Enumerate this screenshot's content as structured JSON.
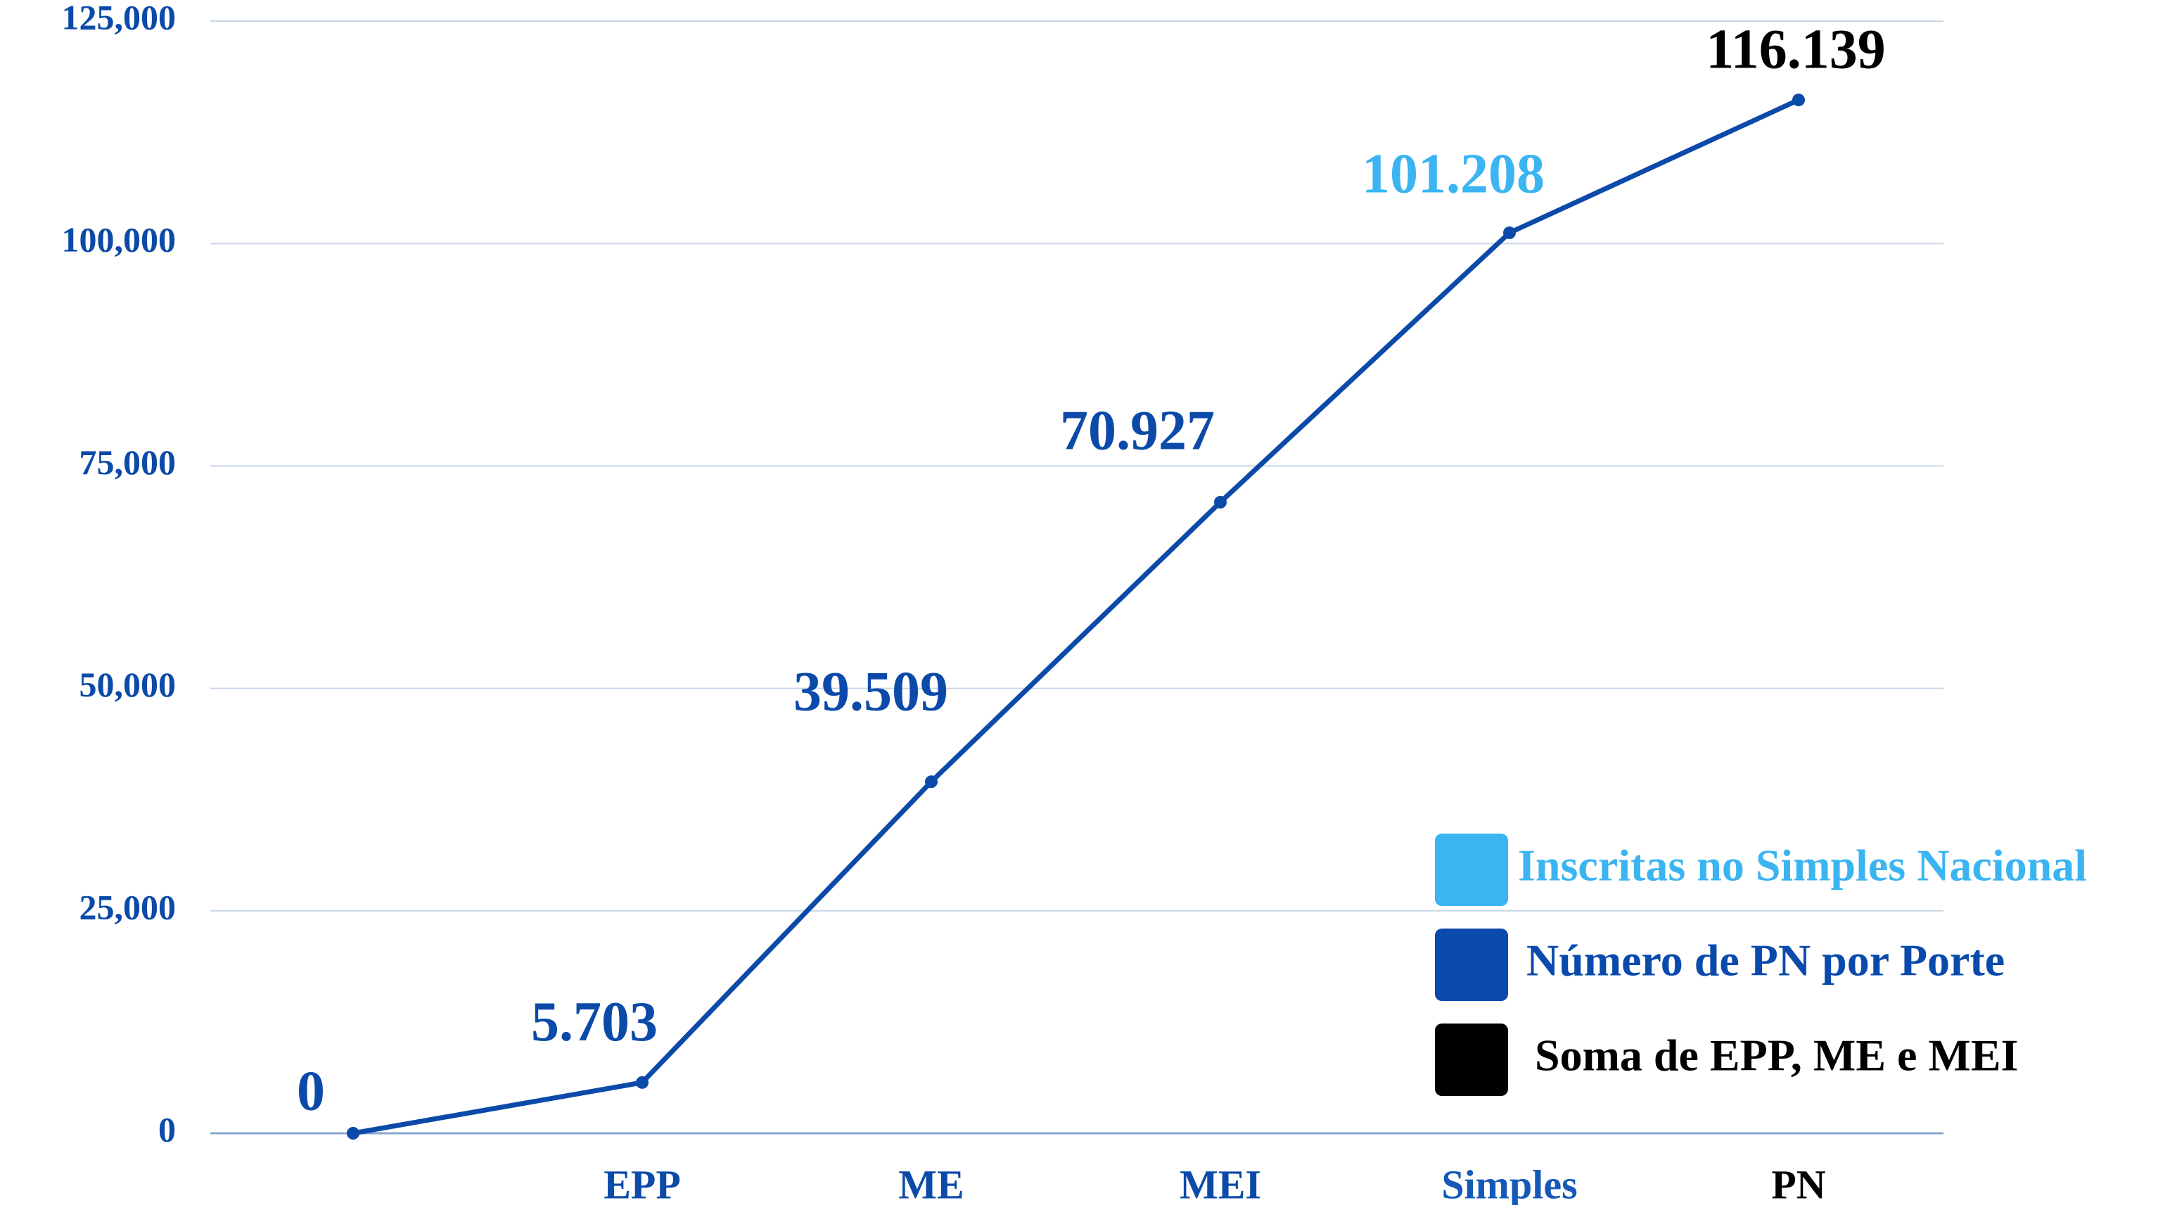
{
  "chart_data": {
    "type": "line",
    "categories": [
      null,
      "EPP",
      "ME",
      "MEI",
      "Simples",
      "PN"
    ],
    "category_colors": [
      "#0b4aa8",
      "#0b4aa8",
      "#0b4aa8",
      "#0b4aa8",
      "#1559b8",
      "#000000"
    ],
    "series": [
      {
        "color": "#0b4aa8",
        "values": [
          0,
          5703,
          39509,
          70927,
          101208,
          116139
        ],
        "value_labels": [
          "0",
          "5.703",
          "39.509",
          "70.927",
          "101.208",
          "116.139"
        ],
        "value_label_colors": [
          "#0b4aa8",
          "#0b4aa8",
          "#0b4aa8",
          "#0b4aa8",
          "#3bb4f2",
          "#000000"
        ]
      }
    ],
    "ylim": [
      0,
      125000
    ],
    "yticks": [
      0,
      {
        "value": 25000,
        "label": "25,000"
      },
      {
        "value": 50000,
        "label": "50,000"
      },
      {
        "value": 75000,
        "label": "75,000"
      },
      {
        "value": 100000,
        "label": "100,000"
      },
      {
        "value": 125000,
        "label": "125,000"
      }
    ],
    "grid": true,
    "legend": [
      {
        "label": "Inscritas no Simples Nacional",
        "color": "#3bb4f2"
      },
      {
        "label": "Número de PN por Porte",
        "color": "#0a4aad"
      },
      {
        "label": "Soma de EPP, ME e MEI",
        "color": "#000000"
      }
    ]
  }
}
